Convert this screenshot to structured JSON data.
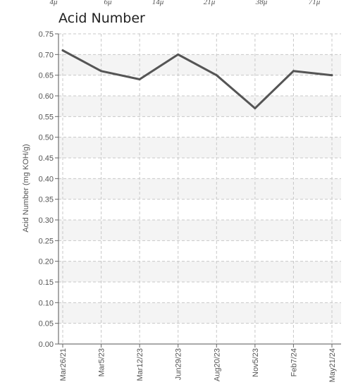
{
  "top_scale": {
    "labels": [
      "4μ",
      "6μ",
      "14μ",
      "21μ",
      "38μ",
      "71μ"
    ]
  },
  "chart_data": {
    "type": "line",
    "title": "Acid Number",
    "ylabel": "Acid Number (mg KOH/g)",
    "xlabel": "",
    "categories": [
      "Mar26/21",
      "Mar5/23",
      "Mar12/23",
      "Jun29/23",
      "Aug20/23",
      "Nov5/23",
      "Feb7/24",
      "May21/24"
    ],
    "series": [
      {
        "values": [
          0.71,
          0.66,
          0.64,
          0.7,
          0.65,
          0.57,
          0.66,
          0.65
        ],
        "color": "#555555"
      }
    ],
    "ylim": [
      0,
      0.75
    ],
    "yticks": [
      "0.00",
      "0.05",
      "0.10",
      "0.15",
      "0.20",
      "0.25",
      "0.30",
      "0.35",
      "0.40",
      "0.45",
      "0.50",
      "0.55",
      "0.60",
      "0.65",
      "0.70",
      "0.75"
    ],
    "grid": true,
    "band_color": "#f4f4f4"
  }
}
